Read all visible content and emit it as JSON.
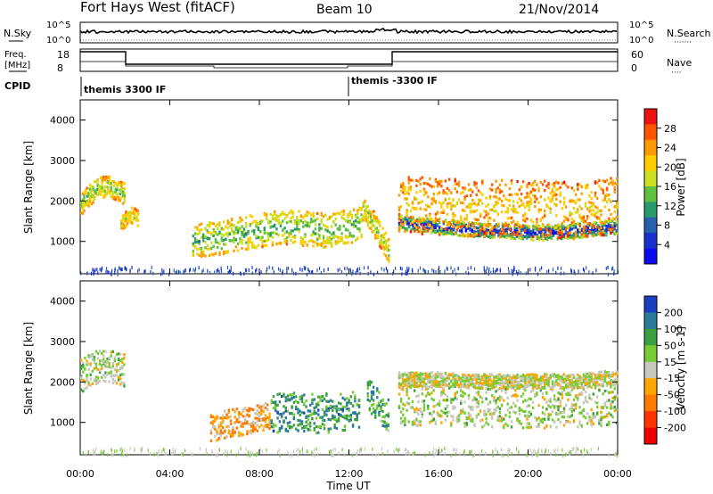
{
  "header": {
    "station": "Fort Hays West (fitACF)",
    "beam": "Beam 10",
    "date": "21/Nov/2014"
  },
  "top_panel": {
    "left_label": "N.Sky",
    "right_label": "N.Search",
    "right_dots": "·······",
    "ticks": [
      "10^5",
      "10^0"
    ]
  },
  "freq_panel": {
    "left_label_line1": "Freq.",
    "left_label_line2": "[MHz]",
    "right_label": "Nave",
    "right_dots": "····",
    "left_ticks": [
      "18",
      "8"
    ],
    "right_ticks": [
      "60",
      "0"
    ]
  },
  "cpid": {
    "label": "CPID",
    "segments": [
      "themis 3300 IF",
      "themis -3300 IF"
    ]
  },
  "chart_data": [
    {
      "type": "heatmap",
      "name": "power",
      "ylabel": "Slant Range [km]",
      "y_ticks": [
        1000,
        2000,
        3000,
        4000
      ],
      "ylim": [
        200,
        4500
      ],
      "xlim": [
        0,
        24
      ],
      "colorbar": {
        "label": "Power [dB]",
        "ticks": [
          "28",
          "24",
          "20",
          "16",
          "12",
          "8",
          "4"
        ],
        "colors": [
          "#ee1111",
          "#ff5500",
          "#ff9900",
          "#ffcc00",
          "#c8e020",
          "#60c040",
          "#2a9a6a",
          "#2860b0",
          "#1a2fd0",
          "#0a0aee"
        ]
      },
      "bands": [
        {
          "x": [
            0.0,
            0.4,
            0.8,
            1.2,
            1.6,
            2.0
          ],
          "y": [
            1900,
            2150,
            2300,
            2350,
            2250,
            2150
          ],
          "w": 260,
          "level": 0.55
        },
        {
          "x": [
            1.8,
            2.2,
            2.6
          ],
          "y": [
            1450,
            1650,
            1550
          ],
          "w": 200,
          "level": 0.45
        },
        {
          "x": [
            5.0,
            6.0,
            7.0,
            8.0,
            9.0,
            10.0,
            11.0,
            12.0,
            12.6
          ],
          "y": [
            1000,
            1050,
            1150,
            1250,
            1350,
            1300,
            1250,
            1350,
            1500
          ],
          "w": 420,
          "level": 0.6
        },
        {
          "x": [
            12.6,
            13.0,
            13.4,
            13.8
          ],
          "y": [
            1800,
            1500,
            1100,
            700
          ],
          "w": 300,
          "level": 0.5
        },
        {
          "x": [
            14.2,
            15.0,
            16.0,
            17.0,
            18.0,
            19.0,
            20.0,
            21.0,
            22.0,
            23.0,
            24.0
          ],
          "y": [
            1450,
            1400,
            1350,
            1300,
            1250,
            1250,
            1200,
            1200,
            1250,
            1300,
            1350
          ],
          "w": 180,
          "level": 0.92
        },
        {
          "x": [
            14.2,
            16.0,
            18.0,
            20.0,
            22.0,
            24.0
          ],
          "y": [
            1900,
            1850,
            1800,
            1800,
            1750,
            1900
          ],
          "w": 700,
          "level": 0.35
        }
      ]
    },
    {
      "type": "heatmap",
      "name": "velocity",
      "ylabel": "Slant Range [km]",
      "y_ticks": [
        1000,
        2000,
        3000,
        4000
      ],
      "ylim": [
        200,
        4500
      ],
      "xlim": [
        0,
        24
      ],
      "xlabel": "Time UT",
      "x_ticks": [
        "00:00",
        "04:00",
        "08:00",
        "12:00",
        "16:00",
        "20:00",
        "00:00"
      ],
      "colorbar": {
        "label": "Velocity [m s-1]",
        "ticks": [
          "200",
          "100",
          "50",
          "15",
          "-15",
          "-50",
          "-100",
          "-200"
        ],
        "colors": [
          "#1a3fc0",
          "#2a7a9a",
          "#3aa040",
          "#77cc33",
          "#c8c8c0",
          "#ffa500",
          "#ff7a00",
          "#ff3300",
          "#ee0000"
        ]
      },
      "bands": [
        {
          "x": [
            0.0,
            0.5,
            1.0,
            1.5,
            2.0
          ],
          "y": [
            2150,
            2300,
            2400,
            2350,
            2250
          ],
          "w": 420,
          "level": 0.45
        },
        {
          "x": [
            5.8,
            6.5,
            7.5,
            8.5
          ],
          "y": [
            850,
            950,
            1050,
            1150
          ],
          "w": 350,
          "level": 0.62
        },
        {
          "x": [
            8.5,
            9.5,
            10.5,
            11.5,
            12.5
          ],
          "y": [
            1200,
            1250,
            1200,
            1250,
            1350
          ],
          "w": 480,
          "level": 0.25
        },
        {
          "x": [
            12.8,
            13.3,
            13.8
          ],
          "y": [
            1700,
            1400,
            1100
          ],
          "w": 400,
          "level": 0.3
        },
        {
          "x": [
            14.2,
            16.0,
            18.0,
            20.0,
            22.0,
            24.0
          ],
          "y": [
            1550,
            1550,
            1500,
            1500,
            1500,
            1600
          ],
          "w": 650,
          "level": 0.45
        },
        {
          "x": [
            14.2,
            16.0,
            18.0,
            20.0,
            22.0,
            24.0
          ],
          "y": [
            2050,
            2050,
            2000,
            2000,
            2000,
            2100
          ],
          "w": 180,
          "level": 0.5
        }
      ]
    }
  ]
}
